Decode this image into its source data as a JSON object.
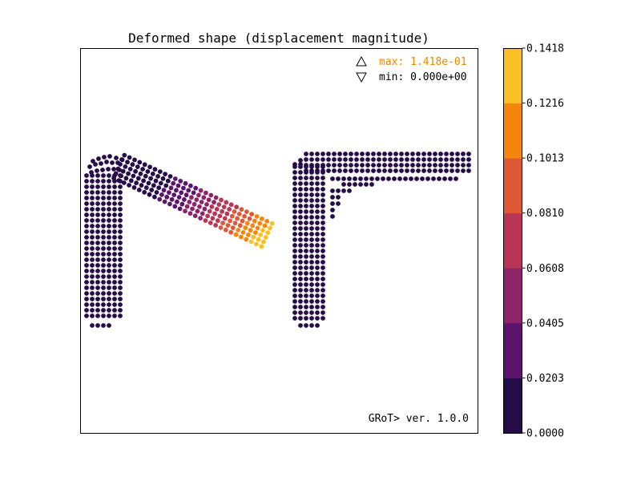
{
  "chart_data": {
    "type": "scatter",
    "title": "Deformed shape (displacement magnitude)",
    "annotations": {
      "max_label": "max: 1.418e-01",
      "min_label": "min: 0.000e+00",
      "max_color": "#e88a00",
      "min_color": "#000000",
      "version": "GRoT> ver. 1.0.0"
    },
    "colorbar": {
      "ticks": [
        "0.0000",
        "0.0203",
        "0.0405",
        "0.0608",
        "0.0810",
        "0.1013",
        "0.1216",
        "0.1418"
      ],
      "colors": [
        "#250b47",
        "#5c136e",
        "#8d2369",
        "#b93556",
        "#e05937",
        "#f5850f",
        "#fbbf26"
      ],
      "min": 0.0,
      "max": 0.1418
    },
    "grid": false,
    "legend": "top-right"
  }
}
